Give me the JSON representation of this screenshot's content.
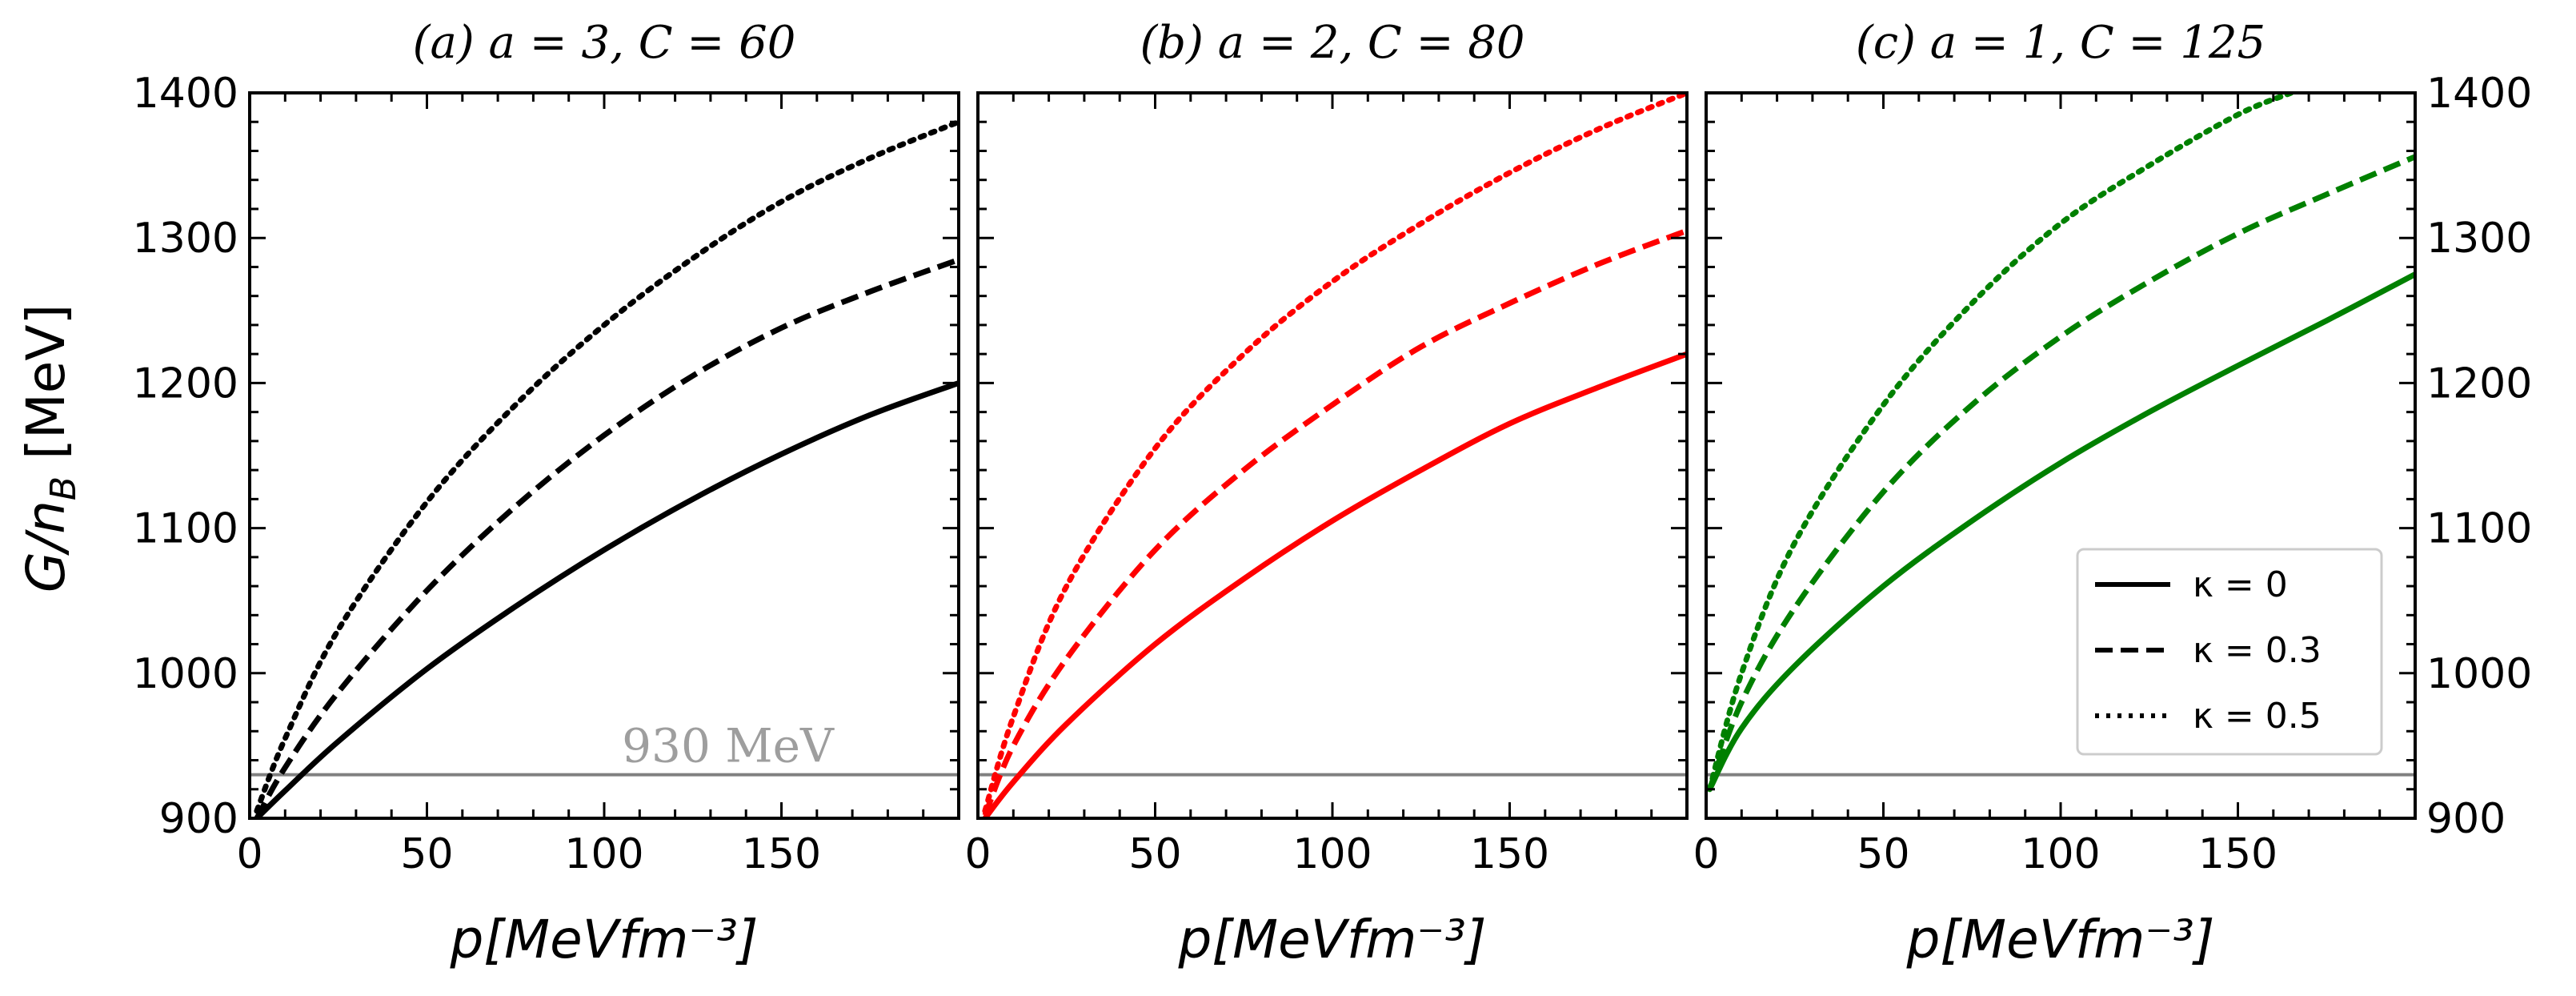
{
  "figure": {
    "ylabel_main": "G/n",
    "ylabel_sub": "B",
    "ylabel_unit": " [MeV]",
    "reference_line_label": "930 MeV"
  },
  "chart_data": [
    {
      "type": "line",
      "title": "(a) a = 3, C = 60",
      "xlabel": "p[MeVfm⁻³]",
      "ylabel": "G/n_B [MeV]",
      "xlim": [
        0,
        200
      ],
      "ylim": [
        900,
        1400
      ],
      "x_ticks": [
        "0",
        "50",
        "100",
        "150"
      ],
      "y_ticks": [
        "900",
        "1000",
        "1100",
        "1200",
        "1300",
        "1400"
      ],
      "reference_line": {
        "y": 930,
        "label": "930 MeV",
        "color": "#808080"
      },
      "color": "#000000",
      "series": [
        {
          "name": "κ = 0",
          "style": "solid",
          "x": [
            2,
            10,
            25,
            50,
            75,
            100,
            125,
            150,
            175,
            200
          ],
          "y": [
            900,
            919,
            953,
            1003,
            1046,
            1085,
            1120,
            1151,
            1178,
            1200
          ]
        },
        {
          "name": "κ = 0.3",
          "style": "dashed",
          "x": [
            2,
            10,
            25,
            50,
            75,
            100,
            125,
            150,
            175,
            200
          ],
          "y": [
            900,
            935,
            987,
            1057,
            1115,
            1164,
            1205,
            1238,
            1263,
            1285
          ]
        },
        {
          "name": "κ = 0.5",
          "style": "dotted",
          "x": [
            2,
            10,
            25,
            50,
            75,
            100,
            125,
            150,
            175,
            200
          ],
          "y": [
            905,
            955,
            1030,
            1118,
            1185,
            1240,
            1286,
            1325,
            1355,
            1380
          ]
        }
      ]
    },
    {
      "type": "line",
      "title": "(b) a = 2, C = 80",
      "xlabel": "p[MeVfm⁻³]",
      "ylabel": "G/n_B [MeV]",
      "xlim": [
        0,
        200
      ],
      "ylim": [
        900,
        1400
      ],
      "x_ticks": [
        "0",
        "50",
        "100",
        "150"
      ],
      "y_ticks": [
        "900",
        "1000",
        "1100",
        "1200",
        "1300",
        "1400"
      ],
      "reference_line": {
        "y": 930,
        "label": "",
        "color": "#808080"
      },
      "color": "#ff0000",
      "series": [
        {
          "name": "κ = 0",
          "style": "solid",
          "x": [
            2,
            10,
            25,
            50,
            75,
            100,
            125,
            150,
            175,
            200
          ],
          "y": [
            900,
            925,
            965,
            1020,
            1065,
            1105,
            1140,
            1172,
            1197,
            1220
          ]
        },
        {
          "name": "κ = 0.3",
          "style": "dashed",
          "x": [
            2,
            10,
            25,
            50,
            75,
            100,
            125,
            150,
            175,
            200
          ],
          "y": [
            902,
            950,
            1010,
            1085,
            1140,
            1185,
            1225,
            1255,
            1282,
            1305
          ]
        },
        {
          "name": "κ = 0.5",
          "style": "dotted",
          "x": [
            2,
            10,
            25,
            50,
            75,
            100,
            125,
            150,
            175,
            200
          ],
          "y": [
            905,
            970,
            1060,
            1155,
            1220,
            1270,
            1310,
            1345,
            1375,
            1400
          ]
        }
      ]
    },
    {
      "type": "line",
      "title": "(c) a = 1, C = 125",
      "xlabel": "p[MeVfm⁻³]",
      "ylabel": "G/n_B [MeV]",
      "xlim": [
        0,
        200
      ],
      "ylim": [
        900,
        1400
      ],
      "x_ticks": [
        "0",
        "50",
        "100",
        "150"
      ],
      "y_ticks": [
        "900",
        "1000",
        "1100",
        "1200",
        "1300",
        "1400"
      ],
      "reference_line": {
        "y": 930,
        "label": "",
        "color": "#808080"
      },
      "color": "#008000",
      "series": [
        {
          "name": "κ = 0",
          "style": "solid",
          "x": [
            1,
            10,
            25,
            50,
            75,
            100,
            125,
            150,
            175,
            200
          ],
          "y": [
            920,
            962,
            1005,
            1060,
            1105,
            1145,
            1180,
            1212,
            1243,
            1275
          ]
        },
        {
          "name": "κ = 0.3",
          "style": "dashed",
          "x": [
            1,
            10,
            25,
            50,
            75,
            100,
            125,
            150,
            175,
            200
          ],
          "y": [
            920,
            980,
            1045,
            1125,
            1185,
            1232,
            1270,
            1303,
            1330,
            1356
          ]
        },
        {
          "name": "κ = 0.5",
          "style": "dotted",
          "x": [
            1,
            10,
            25,
            50,
            75,
            100,
            125,
            150,
            165
          ],
          "y": [
            920,
            1000,
            1090,
            1185,
            1255,
            1310,
            1350,
            1385,
            1400
          ]
        }
      ]
    }
  ],
  "legend": {
    "location": "lower-right of panel (c)",
    "entries": [
      {
        "label": "κ = 0",
        "style": "solid"
      },
      {
        "label": "κ = 0.3",
        "style": "dashed"
      },
      {
        "label": "κ = 0.5",
        "style": "dotted"
      }
    ]
  }
}
